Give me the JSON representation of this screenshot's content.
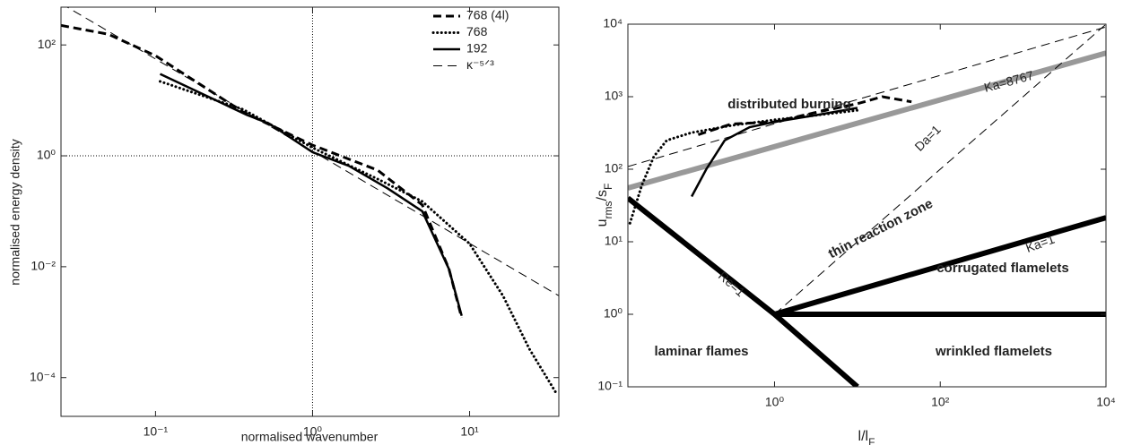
{
  "chart_data": [
    {
      "type": "line",
      "xlabel": "normalised wavenumber",
      "ylabel": "normalised energy density",
      "xscale": "log",
      "yscale": "log",
      "xlim": [
        0.025,
        37
      ],
      "ylim": [
        2e-05,
        480
      ],
      "xticks": [
        {
          "value": 0.1,
          "label": "10⁻¹"
        },
        {
          "value": 1,
          "label": "10⁰"
        },
        {
          "value": 10,
          "label": "10¹"
        }
      ],
      "yticks": [
        {
          "value": 0.0001,
          "label": "10⁻⁴"
        },
        {
          "value": 0.01,
          "label": "10⁻²"
        },
        {
          "value": 1,
          "label": "10⁰"
        },
        {
          "value": 100,
          "label": "10²"
        }
      ],
      "vlines": [
        1
      ],
      "hlines": [
        1
      ],
      "legend": "upper right",
      "series": [
        {
          "name": "768 (4l)",
          "color": "#000000",
          "style": "dashed-bold",
          "x": [
            0.025,
            0.05,
            0.1,
            0.36,
            1,
            2.6,
            5,
            7.4,
            8.9
          ],
          "values": [
            225,
            156,
            64,
            6.2,
            1.56,
            0.55,
            0.13,
            0.009,
            0.0012
          ]
        },
        {
          "name": "768",
          "color": "#000000",
          "style": "dotted",
          "x": [
            0.107,
            0.36,
            1,
            2.6,
            5,
            10,
            16.3,
            24,
            36
          ],
          "values": [
            22,
            6.9,
            1.4,
            0.38,
            0.15,
            0.026,
            0.003,
            0.00033,
            5e-05
          ]
        },
        {
          "name": "192",
          "color": "#000000",
          "style": "solid",
          "x": [
            0.107,
            0.38,
            0.53,
            1,
            1.7,
            3.0,
            5,
            7.4,
            8.9
          ],
          "values": [
            30,
            5.5,
            3.8,
            1.16,
            0.66,
            0.26,
            0.1,
            0.009,
            0.0013
          ]
        },
        {
          "name": "κ⁻⁵ᐟ³",
          "color": "#000000",
          "style": "dashed",
          "x": [
            0.025,
            37
          ],
          "values": [
            560,
            0.003
          ]
        }
      ]
    },
    {
      "type": "line",
      "xlabel": [
        "l/l",
        "F"
      ],
      "ylabel": [
        "u",
        "rms",
        "/s",
        "F"
      ],
      "xscale": "log",
      "yscale": "log",
      "xlim": [
        0.017,
        10000
      ],
      "ylim": [
        0.1,
        10000
      ],
      "xticks": [
        {
          "value": 1,
          "label": "10⁰"
        },
        {
          "value": 100,
          "label": "10²"
        },
        {
          "value": 10000,
          "label": "10⁴"
        }
      ],
      "yticks": [
        {
          "value": 0.1,
          "label": "10⁻¹"
        },
        {
          "value": 1,
          "label": "10⁰"
        },
        {
          "value": 10,
          "label": "10¹"
        },
        {
          "value": 100,
          "label": "10²"
        },
        {
          "value": 1000,
          "label": "10³"
        },
        {
          "value": 10000,
          "label": "10⁴"
        }
      ],
      "legend": false,
      "annotations": [
        "distributed burning",
        "thin reaction zone",
        "corrugated flamelets",
        "wrinkled flamelets",
        "laminar flames"
      ],
      "series": [
        {
          "color": "#999999",
          "style": "solid-bold",
          "x": [
            0.017,
            10000
          ],
          "values": [
            55,
            4000
          ]
        },
        {
          "name": "Ka=8767",
          "color": "#000000",
          "style": "dashed",
          "x": [
            0.017,
            10000
          ],
          "values": [
            109,
            9150
          ]
        },
        {
          "name": "Da=1",
          "color": "#000000",
          "style": "dashed",
          "x": [
            1,
            10000
          ],
          "values": [
            1,
            10000
          ]
        },
        {
          "name": "Re=1",
          "color": "#000000",
          "style": "solid-bold",
          "x": [
            0.017,
            1,
            10
          ],
          "values": [
            40,
            1,
            0.1
          ]
        },
        {
          "name": "Ka=1",
          "color": "#000000",
          "style": "solid-bold",
          "x": [
            1,
            10000
          ],
          "values": [
            1,
            21.5
          ]
        },
        {
          "color": "#000000",
          "style": "solid-bold",
          "x": [
            1,
            10000
          ],
          "values": [
            1,
            1
          ]
        },
        {
          "color": "#000000",
          "style": "dotted",
          "x": [
            0.018,
            0.025,
            0.035,
            0.05,
            0.1,
            0.3,
            1,
            3,
            10
          ],
          "values": [
            18,
            60,
            150,
            250,
            320,
            400,
            480,
            550,
            650
          ]
        },
        {
          "color": "#000000",
          "style": "dashed-bold",
          "x": [
            0.12,
            0.3,
            1,
            3,
            10,
            20,
            45
          ],
          "values": [
            300,
            420,
            450,
            600,
            800,
            1000,
            850
          ]
        },
        {
          "color": "#000000",
          "style": "solid",
          "x": [
            0.1,
            0.15,
            0.25,
            0.5,
            1,
            3,
            10
          ],
          "values": [
            42,
            100,
            250,
            380,
            450,
            550,
            700
          ]
        }
      ]
    }
  ]
}
